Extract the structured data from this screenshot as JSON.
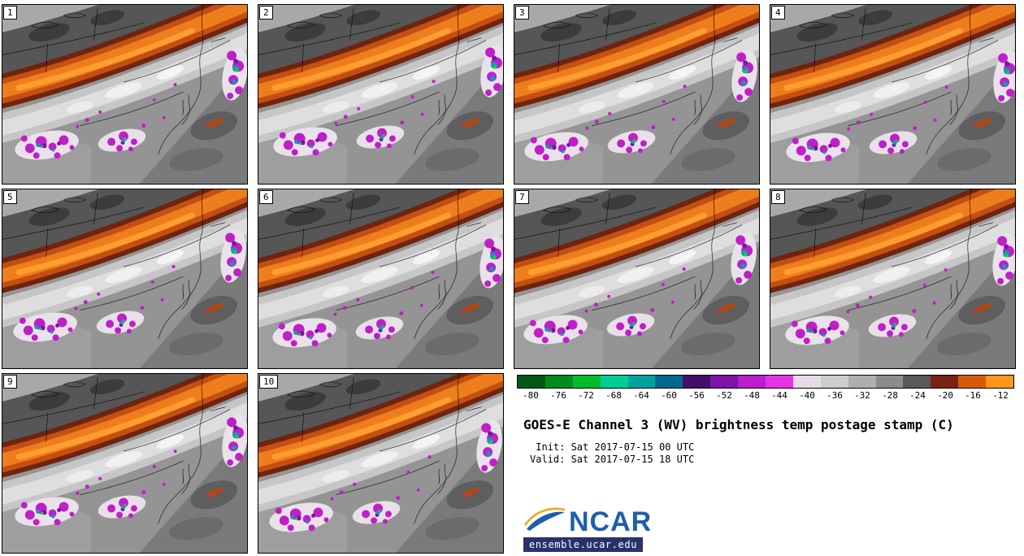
{
  "panels": [
    {
      "label": "1"
    },
    {
      "label": "2"
    },
    {
      "label": "3"
    },
    {
      "label": "4"
    },
    {
      "label": "5"
    },
    {
      "label": "6"
    },
    {
      "label": "7"
    },
    {
      "label": "8"
    },
    {
      "label": "9"
    },
    {
      "label": "10"
    }
  ],
  "legend": {
    "title": "GOES-E Channel 3 (WV) brightness temp postage stamp (C)",
    "init_label": " Init: Sat 2017-07-15 00 UTC",
    "valid_label": "Valid: Sat 2017-07-15 18 UTC",
    "units": "C",
    "colorbar": {
      "tick_labels": [
        "-80",
        "-76",
        "-72",
        "-68",
        "-64",
        "-60",
        "-56",
        "-52",
        "-48",
        "-44",
        "-40",
        "-36",
        "-32",
        "-28",
        "-24",
        "-20",
        "-16",
        "-12"
      ],
      "colors": [
        "#005a14",
        "#008c1e",
        "#00be28",
        "#00cd96",
        "#00a0a0",
        "#00688c",
        "#440f69",
        "#7d14a5",
        "#bb1ecd",
        "#e632e6",
        "#e6dce6",
        "#cdcdcd",
        "#afafaf",
        "#8c8c8c",
        "#5a5a5a",
        "#782314",
        "#d75a0a",
        "#ff961e"
      ]
    }
  },
  "logo": {
    "wordmark": "NCAR",
    "site": "ensemble.ucar.edu",
    "blue": "#1f5fa8",
    "orange": "#f2a71e",
    "bar_navy": "#28336b"
  },
  "map_palette": {
    "background_gray": "#949494",
    "dry_band_edge_brown": "#6e2410",
    "dry_band_orange": "#ee7d1e",
    "dry_band_bright": "#ff9d2e",
    "moist_band_light": "#dedede",
    "cold_cloud_magenta": "#c01ec8",
    "cold_core_cyan": "#00a0b4",
    "cold_core_green": "#2cc82c"
  }
}
